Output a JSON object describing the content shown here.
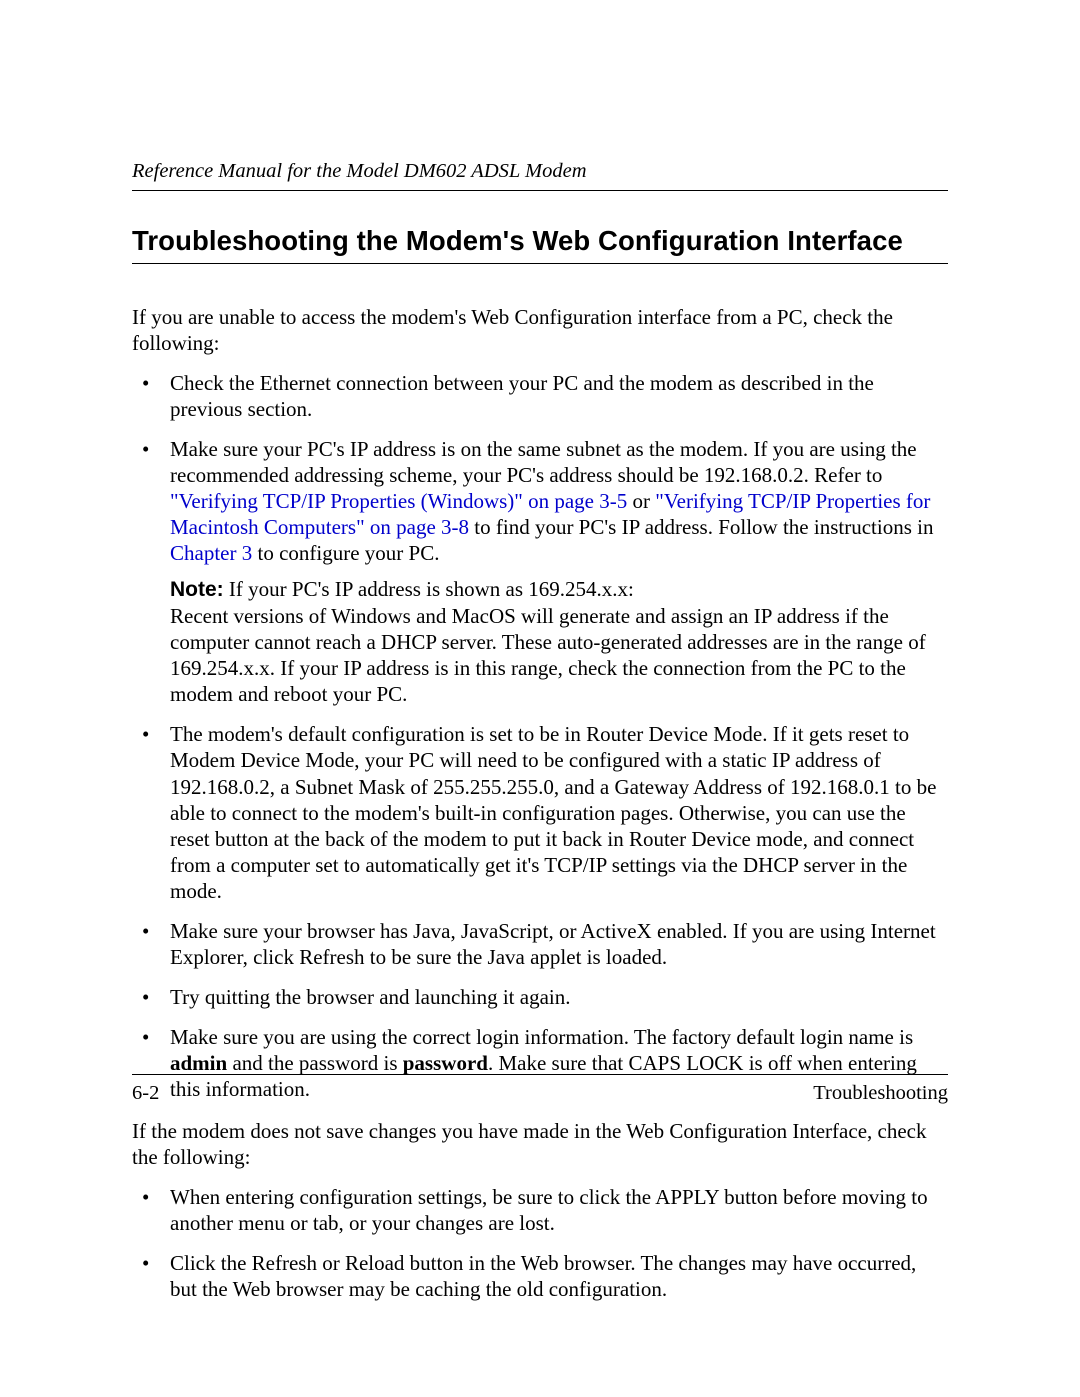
{
  "colors": {
    "text": "#000000",
    "link": "#0000cc",
    "background": "#ffffff",
    "rule": "#000000"
  },
  "typography": {
    "body_family": "Times New Roman",
    "body_size_pt": 16,
    "heading_family": "Arial",
    "heading_size_pt": 21,
    "heading_weight": "bold",
    "header_italic": true
  },
  "header": {
    "text": "Reference Manual for the Model DM602 ADSL Modem"
  },
  "title": "Troubleshooting the Modem's Web Configuration Interface",
  "intro1": "If you are unable to access the modem's Web Configuration interface from a PC, check the following:",
  "list1": {
    "item1": "Check the Ethernet connection between your PC and the modem as described in the previous section.",
    "item2": {
      "t1": "Make sure your PC's IP address is on the same subnet as the modem. If you are using the recommended addressing scheme, your PC's address should be 192.168.0.2. Refer to ",
      "link1": "\"Verifying TCP/IP Properties (Windows)\" on page 3-5",
      "t2": " or ",
      "link2": "\"Verifying TCP/IP Properties for Macintosh Computers\" on page 3-8",
      "t3": " to find your PC's IP address. Follow the instructions in ",
      "link3": "Chapter 3",
      "t4": " to configure your PC.",
      "note_label": "Note:",
      "note_lead": " If your PC's IP address is shown as 169.254.x.x:",
      "note_body": "Recent versions of Windows and MacOS will generate and assign an IP address if the computer cannot reach a DHCP server. These auto-generated addresses are in the range of 169.254.x.x. If your IP address is in this range, check the connection from the PC to the modem and reboot your PC."
    },
    "item3": "The modem's default configuration is set to be in Router Device Mode. If it gets reset to Modem Device Mode, your PC will need to be configured with a static IP address of 192.168.0.2, a Subnet Mask of 255.255.255.0, and a Gateway Address of 192.168.0.1 to be able to connect to the modem's built-in configuration pages. Otherwise, you can use the reset button at the back of the modem to put it back in Router Device mode, and connect from a computer set to automatically get it's TCP/IP settings via the DHCP server in the mode.",
    "item4": "Make sure your browser has Java, JavaScript, or ActiveX enabled. If you are using Internet Explorer, click Refresh to be sure the Java applet is loaded.",
    "item5": "Try quitting the browser and launching it again.",
    "item6": {
      "t1": "Make sure you are using the correct login information. The factory default login name is ",
      "b1": "admin",
      "t2": " and the password is ",
      "b2": "password",
      "t3": ". Make sure that CAPS LOCK is off when entering this information."
    }
  },
  "intro2": "If the modem does not save changes you have made in the Web Configuration Interface, check the following:",
  "list2": {
    "item1": "When entering configuration settings, be sure to click the APPLY button before moving to another menu or tab, or your changes are lost.",
    "item2": "Click the Refresh or Reload button in the Web browser. The changes may have occurred, but the Web browser may be caching the old configuration."
  },
  "footer": {
    "left": "6-2",
    "right": "Troubleshooting"
  }
}
